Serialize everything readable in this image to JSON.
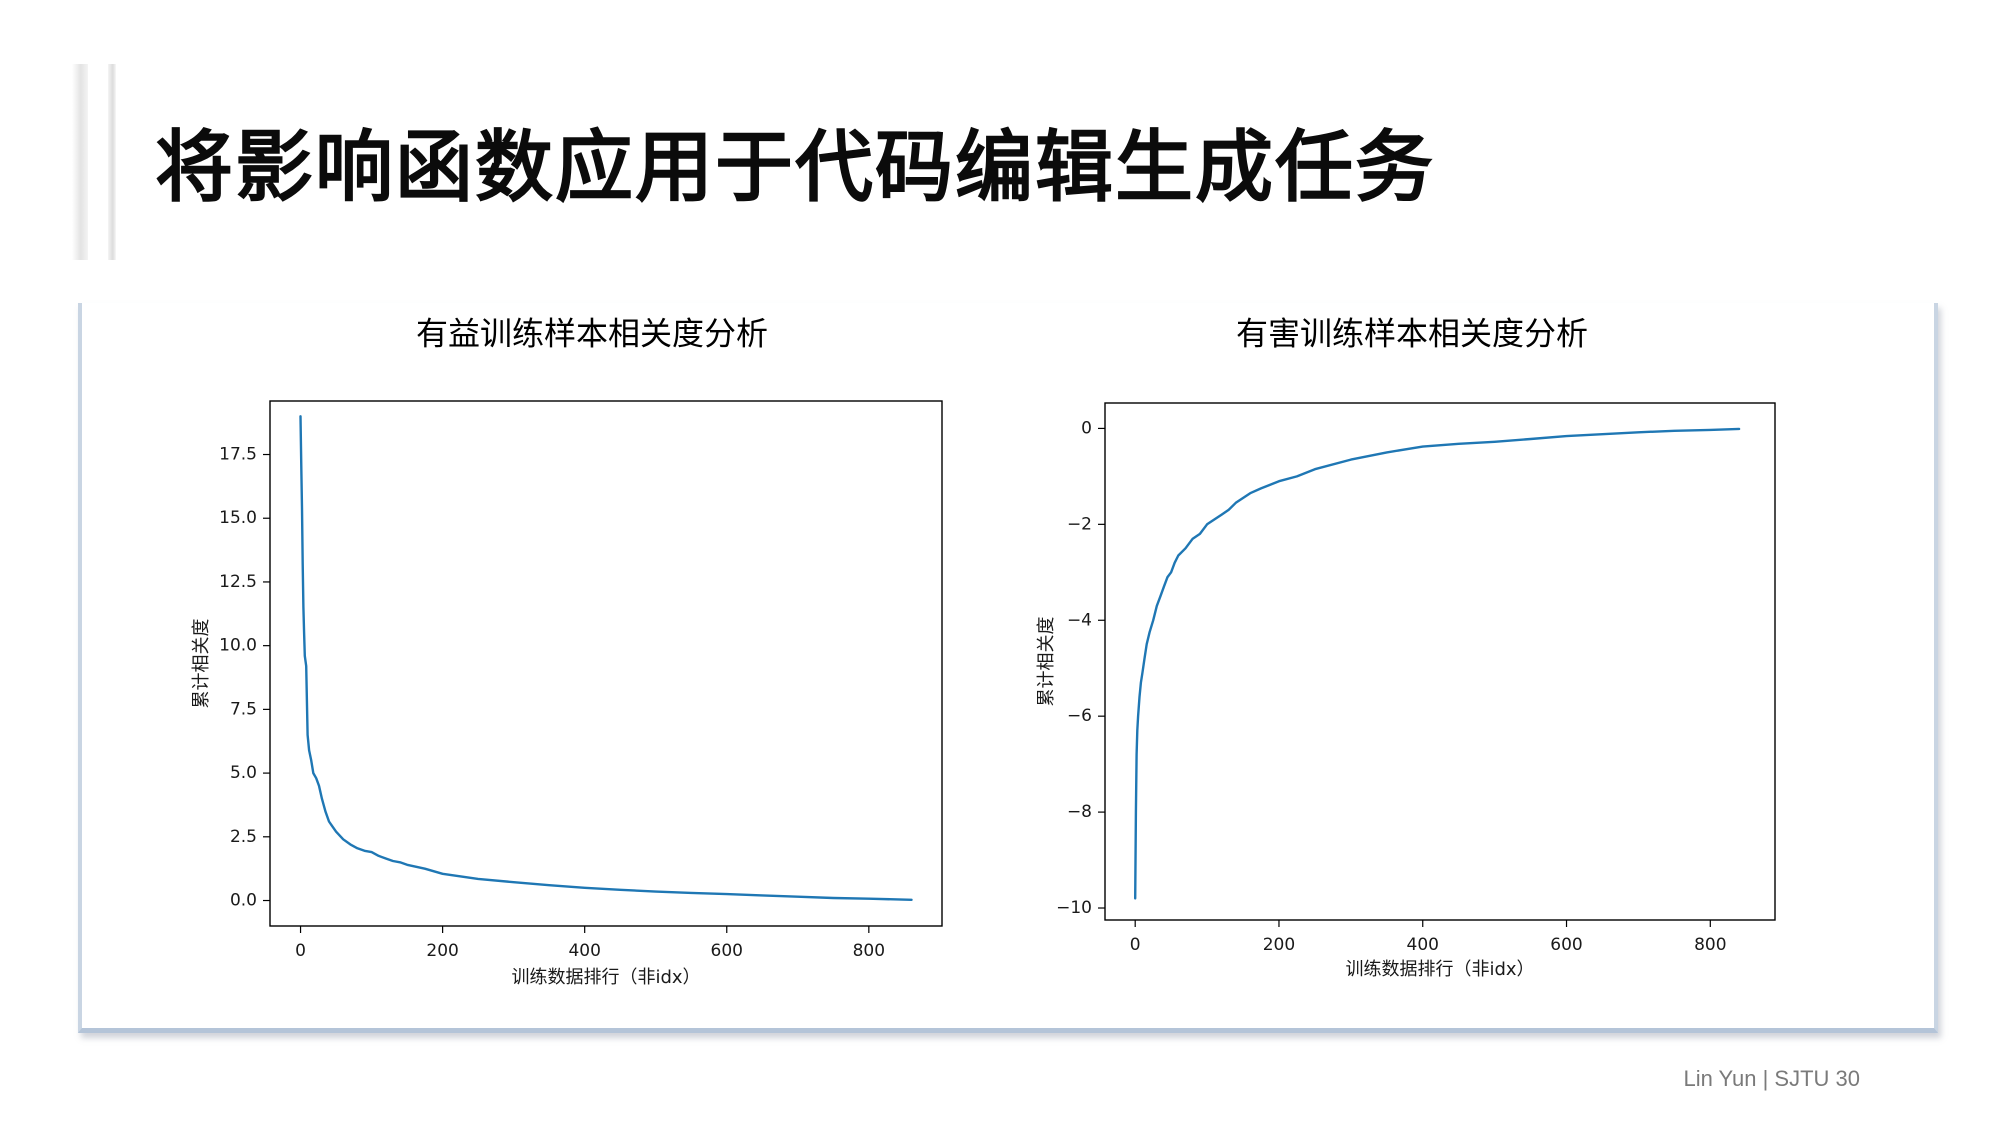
{
  "slide": {
    "title": "将影响函数应用于代码编辑生成任务",
    "footer": "Lin Yun | SJTU 30"
  },
  "colors": {
    "line": "#1f77b4",
    "axes": "#000000",
    "panel_border": "#c9d5e3"
  },
  "chart_data": [
    {
      "type": "line",
      "title": "有益训练样本相关度分析",
      "xlabel": "训练数据排行（非idx）",
      "ylabel": "累计相关度",
      "xlim": [
        -43,
        903
      ],
      "ylim": [
        -1.0,
        19.6
      ],
      "xticks": [
        0,
        200,
        400,
        600,
        800
      ],
      "xtick_labels": [
        "0",
        "200",
        "400",
        "600",
        "800"
      ],
      "yticks": [
        0,
        2.5,
        5,
        7.5,
        10,
        12.5,
        15,
        17.5
      ],
      "ytick_labels": [
        "0.0",
        "2.5",
        "5.0",
        "7.5",
        "10.0",
        "12.5",
        "15.0",
        "17.5"
      ],
      "grid": false,
      "series": [
        {
          "x": [
            0,
            1,
            2,
            3,
            4,
            5,
            6,
            8,
            10,
            12,
            15,
            18,
            22,
            26,
            30,
            35,
            40,
            45,
            50,
            60,
            70,
            80,
            90,
            100,
            110,
            120,
            130,
            140,
            150,
            175,
            200,
            250,
            300,
            350,
            400,
            450,
            500,
            550,
            600,
            650,
            700,
            750,
            800,
            860
          ],
          "y": [
            19.0,
            17.0,
            15.4,
            13.2,
            11.5,
            10.5,
            9.6,
            9.2,
            6.5,
            5.9,
            5.5,
            5.0,
            4.8,
            4.5,
            4.0,
            3.5,
            3.1,
            2.9,
            2.7,
            2.4,
            2.2,
            2.05,
            1.95,
            1.9,
            1.75,
            1.65,
            1.55,
            1.5,
            1.4,
            1.25,
            1.05,
            0.85,
            0.72,
            0.6,
            0.5,
            0.42,
            0.35,
            0.3,
            0.25,
            0.2,
            0.15,
            0.1,
            0.07,
            0.03
          ]
        }
      ]
    },
    {
      "type": "line",
      "title": "有害训练样本相关度分析",
      "xlabel": "训练数据排行（非idx）",
      "ylabel": "累计相关度",
      "xlim": [
        -42,
        890
      ],
      "ylim": [
        -10.25,
        0.53
      ],
      "xticks": [
        0,
        200,
        400,
        600,
        800
      ],
      "xtick_labels": [
        "0",
        "200",
        "400",
        "600",
        "800"
      ],
      "yticks": [
        0,
        -2,
        -4,
        -6,
        -8,
        -10
      ],
      "ytick_labels": [
        "0",
        "−2",
        "−4",
        "−6",
        "−8",
        "−10"
      ],
      "grid": false,
      "series": [
        {
          "x": [
            0,
            1,
            2,
            3,
            4,
            5,
            6,
            8,
            10,
            13,
            16,
            20,
            25,
            30,
            35,
            40,
            45,
            50,
            55,
            60,
            70,
            80,
            90,
            100,
            110,
            120,
            130,
            140,
            150,
            160,
            175,
            200,
            225,
            250,
            300,
            350,
            400,
            450,
            500,
            550,
            600,
            650,
            700,
            750,
            800,
            840
          ],
          "y": [
            -9.8,
            -8.0,
            -6.8,
            -6.3,
            -6.0,
            -5.8,
            -5.6,
            -5.3,
            -5.1,
            -4.8,
            -4.5,
            -4.25,
            -4.0,
            -3.7,
            -3.5,
            -3.3,
            -3.1,
            -3.0,
            -2.8,
            -2.65,
            -2.5,
            -2.3,
            -2.2,
            -2.0,
            -1.9,
            -1.8,
            -1.7,
            -1.55,
            -1.45,
            -1.35,
            -1.25,
            -1.1,
            -1.0,
            -0.85,
            -0.65,
            -0.5,
            -0.38,
            -0.32,
            -0.28,
            -0.22,
            -0.16,
            -0.12,
            -0.08,
            -0.05,
            -0.03,
            -0.01
          ]
        }
      ]
    }
  ]
}
